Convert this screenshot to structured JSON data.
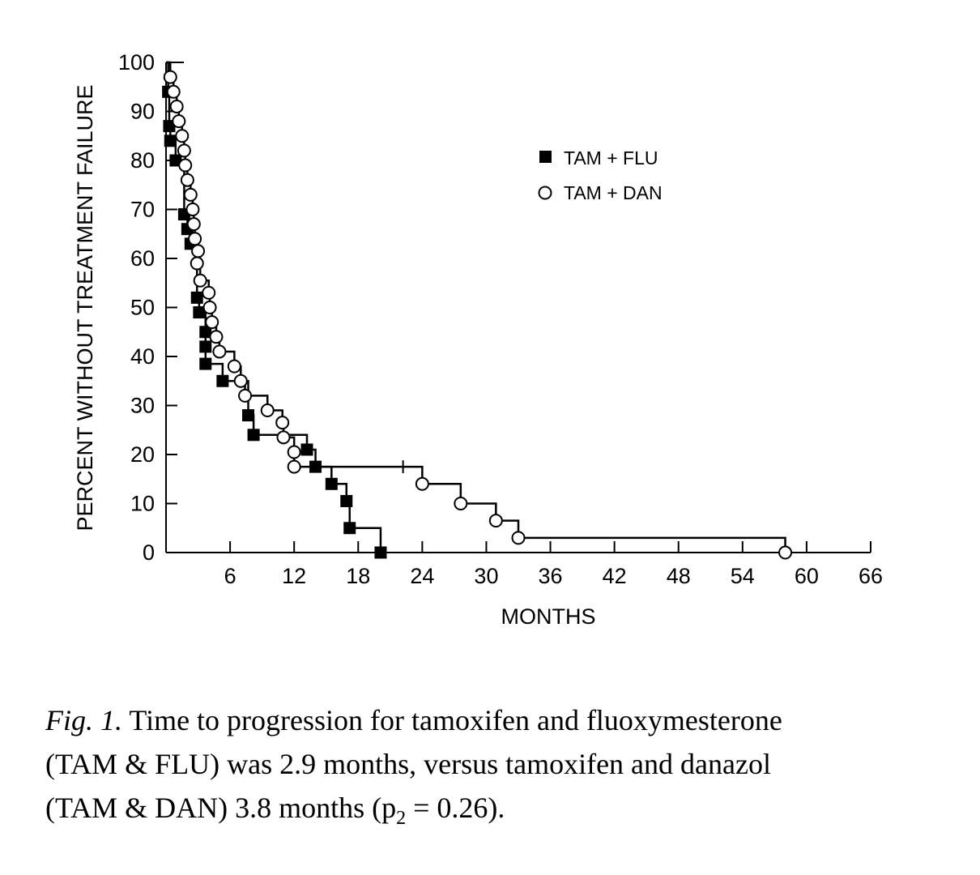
{
  "chart_data": {
    "type": "line",
    "title": "",
    "xlabel": "MONTHS",
    "ylabel": "PERCENT WITHOUT TREATMENT FAILURE",
    "xlim": [
      0,
      66
    ],
    "ylim": [
      0,
      100
    ],
    "x_ticks": [
      6,
      12,
      18,
      24,
      30,
      36,
      42,
      48,
      54,
      60,
      66
    ],
    "y_ticks": [
      0,
      10,
      20,
      30,
      40,
      50,
      60,
      70,
      80,
      90,
      100
    ],
    "step": true,
    "grid": false,
    "legend_position": "top-right",
    "series": [
      {
        "name": "TAM + FLU",
        "marker": "filled-square",
        "color": "#000000",
        "points": [
          [
            0.2,
            94
          ],
          [
            0.3,
            87
          ],
          [
            0.4,
            84
          ],
          [
            0.9,
            80
          ],
          [
            1.7,
            69
          ],
          [
            2.0,
            66
          ],
          [
            2.3,
            63
          ],
          [
            2.9,
            52
          ],
          [
            3.1,
            49
          ],
          [
            3.7,
            45
          ],
          [
            3.7,
            42
          ],
          [
            3.7,
            38.5
          ],
          [
            5.3,
            35
          ],
          [
            7.7,
            28
          ],
          [
            8.2,
            24
          ],
          [
            13.2,
            21
          ],
          [
            14.0,
            17.5
          ],
          [
            15.5,
            14
          ],
          [
            16.9,
            10.5
          ],
          [
            17.2,
            5
          ],
          [
            20.1,
            0
          ]
        ]
      },
      {
        "name": "TAM + DAN",
        "marker": "open-circle",
        "color": "#000000",
        "points": [
          [
            0.4,
            97
          ],
          [
            0.7,
            94
          ],
          [
            1.0,
            91
          ],
          [
            1.2,
            88
          ],
          [
            1.5,
            85
          ],
          [
            1.7,
            82
          ],
          [
            1.8,
            79
          ],
          [
            2.0,
            76
          ],
          [
            2.3,
            73
          ],
          [
            2.5,
            70
          ],
          [
            2.6,
            67
          ],
          [
            2.7,
            64
          ],
          [
            3.0,
            61.5
          ],
          [
            2.9,
            59
          ],
          [
            3.2,
            55.5
          ],
          [
            4.0,
            53
          ],
          [
            4.1,
            50
          ],
          [
            4.3,
            47
          ],
          [
            4.7,
            44
          ],
          [
            5.0,
            41
          ],
          [
            6.4,
            38
          ],
          [
            7.0,
            35
          ],
          [
            7.4,
            32
          ],
          [
            9.5,
            29
          ],
          [
            10.9,
            26.5
          ],
          [
            11.0,
            23.5
          ],
          [
            12.0,
            20.5
          ],
          [
            12.0,
            17.5
          ],
          [
            24.0,
            14
          ],
          [
            27.6,
            10
          ],
          [
            30.9,
            6.5
          ],
          [
            33.0,
            3
          ],
          [
            58.0,
            0
          ]
        ],
        "censor_x": [
          22.2
        ]
      }
    ]
  },
  "caption": {
    "label": "Fig. 1.",
    "line1": " Time to progression for tamoxifen and fluoxymesterone",
    "line2": "(TAM & FLU) was 2.9 months, versus tamoxifen and danazol",
    "line3_a": "(TAM & DAN) 3.8 months (p",
    "line3_sub": "2",
    "line3_b": " = 0.26)."
  }
}
